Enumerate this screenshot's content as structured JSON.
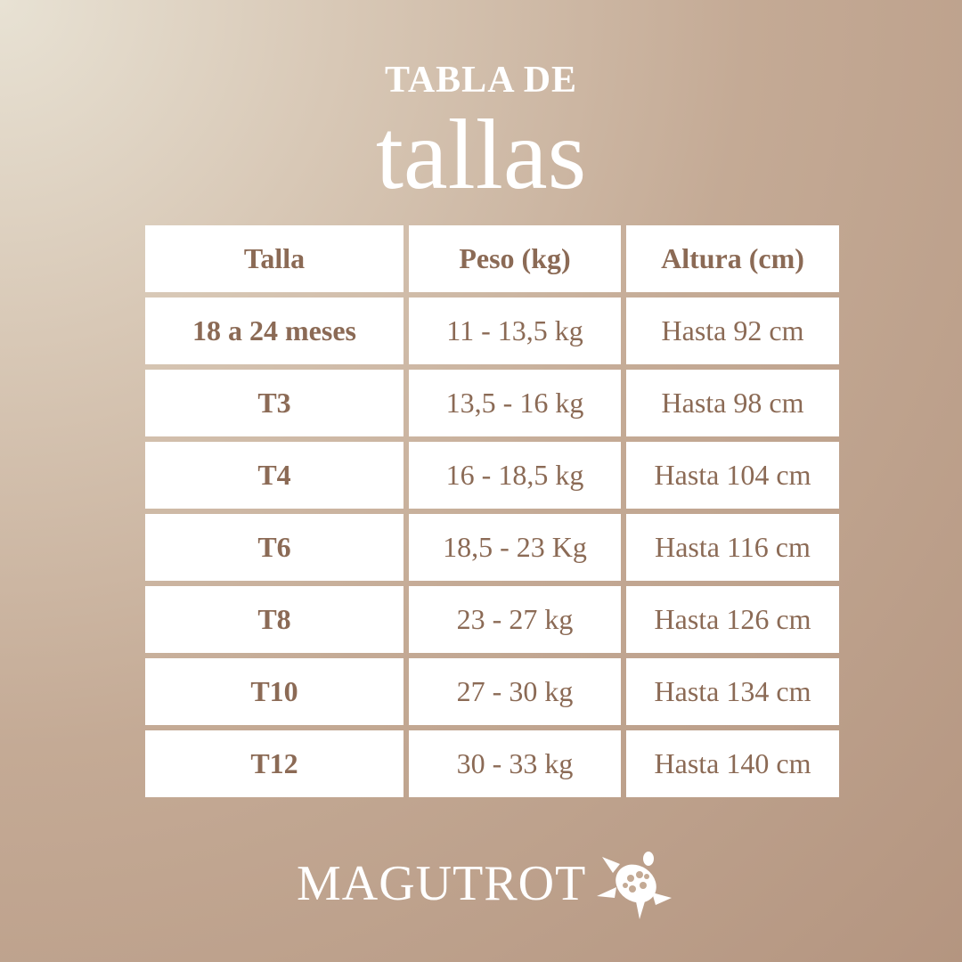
{
  "title": {
    "line1": "TABLA DE",
    "line2": "tallas"
  },
  "table": {
    "headers": [
      "Talla",
      "Peso (kg)",
      "Altura (cm)"
    ],
    "rows": [
      [
        "18 a 24 meses",
        "11 - 13,5 kg",
        "Hasta 92 cm"
      ],
      [
        "T3",
        "13,5 - 16 kg",
        "Hasta 98 cm"
      ],
      [
        "T4",
        "16 - 18,5 kg",
        "Hasta 104 cm"
      ],
      [
        "T6",
        "18,5 - 23 Kg",
        "Hasta 116 cm"
      ],
      [
        "T8",
        "23 - 27 kg",
        "Hasta 126 cm"
      ],
      [
        "T10",
        "27 - 30 kg",
        "Hasta 134 cm"
      ],
      [
        "T12",
        "30 - 33 kg",
        "Hasta 140 cm"
      ]
    ]
  },
  "brand": {
    "name": "MAGUTROT",
    "icon": "turtle-icon"
  },
  "colors": {
    "text": "#8b6a55",
    "cell": "#ffffff"
  }
}
